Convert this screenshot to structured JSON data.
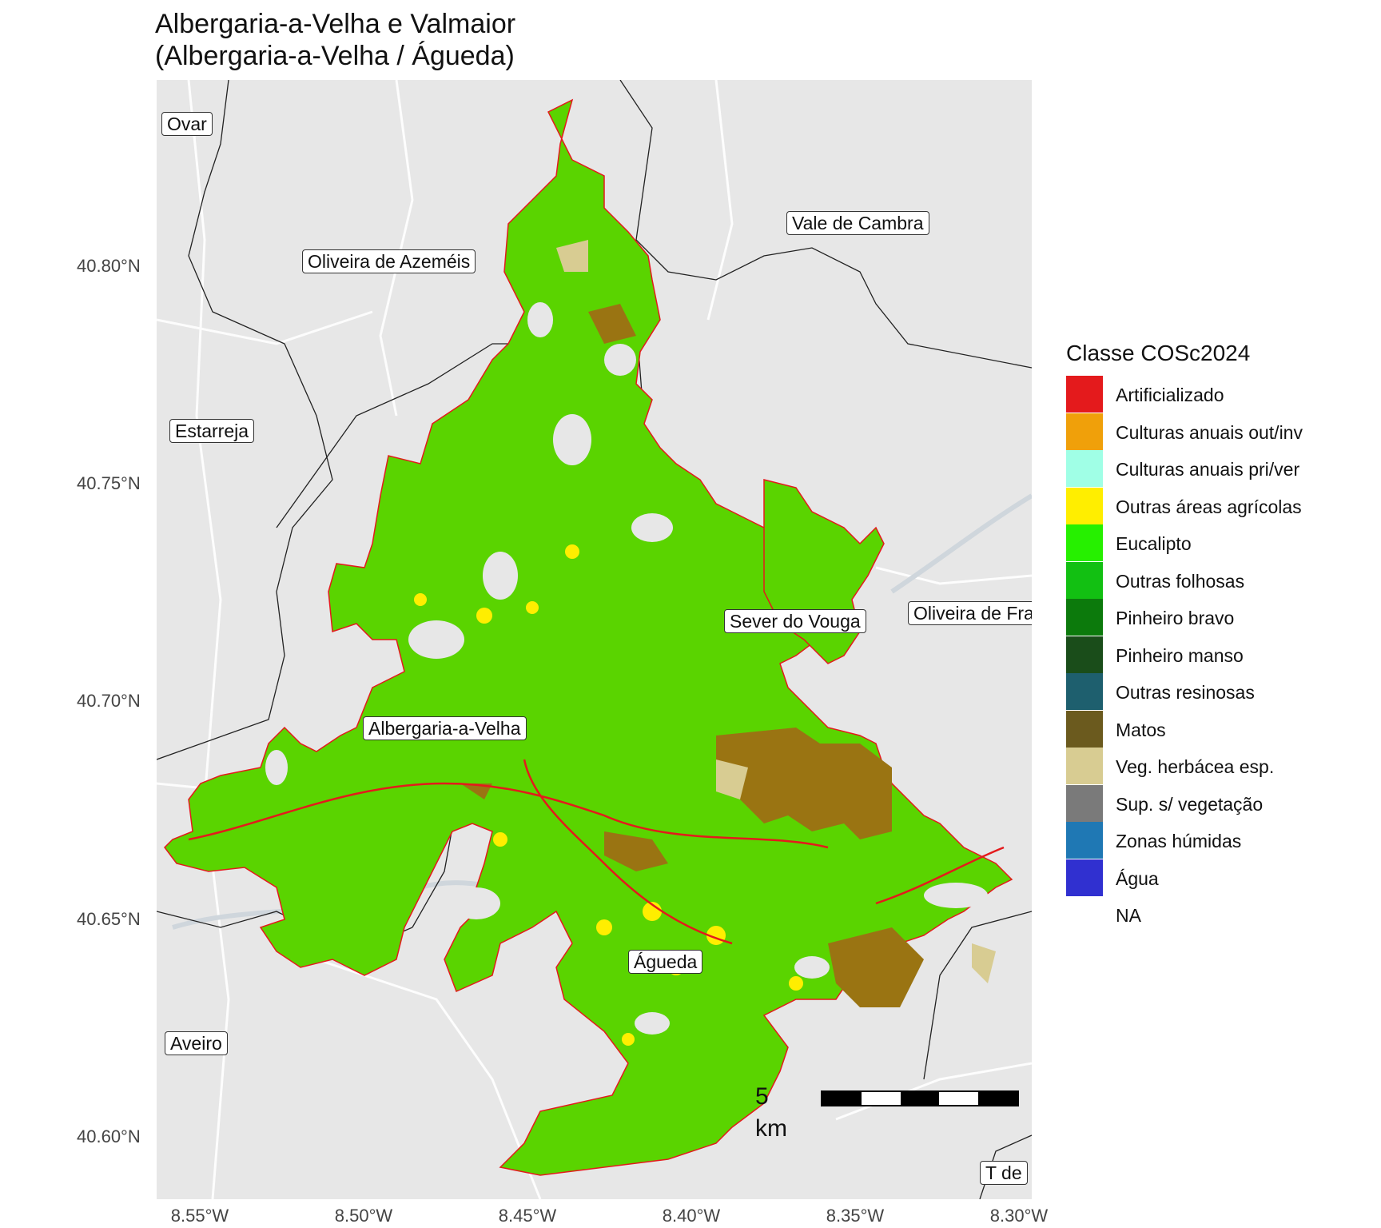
{
  "title_line1": "Albergaria-a-Velha e Valmaior",
  "title_line2": "(Albergaria-a-Velha / Águeda)",
  "place_labels": {
    "ovar": "Ovar",
    "vale_de_cambra": "Vale de Cambra",
    "oliveira_de_azemeis": "Oliveira de Azeméis",
    "estarreja": "Estarreja",
    "sever_do_vouga": "Sever do Vouga",
    "oliveira_de_frades": "Oliveira de Fra",
    "albergaria_a_velha": "Albergaria-a-Velha",
    "agueda": "Águeda",
    "aveiro": "Aveiro",
    "tondela_partial": "T   de"
  },
  "scalebar": {
    "label": "5 km"
  },
  "axes": {
    "y_ticks": [
      "40.80°N",
      "40.75°N",
      "40.70°N",
      "40.65°N",
      "40.60°N"
    ],
    "x_ticks": [
      "8.55°W",
      "8.50°W",
      "8.45°W",
      "8.40°W",
      "8.35°W",
      "8.30°W"
    ]
  },
  "legend": {
    "title": "Classe COSc2024",
    "items": [
      {
        "label": "Artificializado",
        "color": "#e41a1c"
      },
      {
        "label": "Culturas anuais out/inv",
        "color": "#f0a00a"
      },
      {
        "label": "Culturas anuais pri/ver",
        "color": "#a0ffe6"
      },
      {
        "label": "Outras áreas agrícolas",
        "color": "#ffee00"
      },
      {
        "label": "Eucalipto",
        "color": "#26f000"
      },
      {
        "label": "Outras folhosas",
        "color": "#12c012"
      },
      {
        "label": "Pinheiro bravo",
        "color": "#0c7a0c"
      },
      {
        "label": "Pinheiro manso",
        "color": "#1a4d1a"
      },
      {
        "label": "Outras resinosas",
        "color": "#1e5f6e"
      },
      {
        "label": "Matos",
        "color": "#6b5a1e"
      },
      {
        "label": "Veg. herbácea esp.",
        "color": "#d8cc92"
      },
      {
        "label": "Sup. s/ vegetação",
        "color": "#7a7a7a"
      },
      {
        "label": "Zonas húmidas",
        "color": "#1f78b4"
      },
      {
        "label": "Água",
        "color": "#3030d0"
      },
      {
        "label": "NA",
        "color": "#ffffff"
      }
    ]
  },
  "colors": {
    "basemap": "#e7e7e7",
    "land_cover_main": "#5ad400",
    "boundary_line": "#111111"
  }
}
